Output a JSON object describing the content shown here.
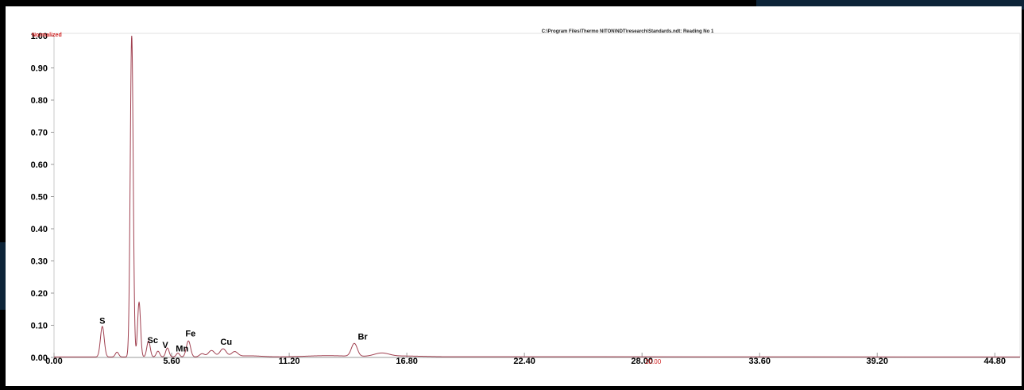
{
  "window": {
    "background": "#000000",
    "accent_strip_color": "#0d2438",
    "panel_background": "#ffffff"
  },
  "chart_data": {
    "type": "line",
    "title": "C:\\Program Files\\Thermo NITON\\NDT\\research\\Standards.ndt: Reading No 1",
    "y_unit_label": "Normalized",
    "cursor_readout": "20.00",
    "xlim": [
      0.0,
      46.0
    ],
    "ylim": [
      0.0,
      1.0
    ],
    "x_ticks": [
      {
        "value": 0.0,
        "label": "0.00"
      },
      {
        "value": 5.6,
        "label": "5.60"
      },
      {
        "value": 11.2,
        "label": "11.20"
      },
      {
        "value": 16.8,
        "label": "16.80"
      },
      {
        "value": 22.4,
        "label": "22.40"
      },
      {
        "value": 28.0,
        "label": "28.00"
      },
      {
        "value": 33.6,
        "label": "33.60"
      },
      {
        "value": 39.2,
        "label": "39.20"
      },
      {
        "value": 44.8,
        "label": "44.80"
      }
    ],
    "y_ticks": [
      {
        "value": 0.0,
        "label": "0.00"
      },
      {
        "value": 0.1,
        "label": "0.10"
      },
      {
        "value": 0.2,
        "label": "0.20"
      },
      {
        "value": 0.3,
        "label": "0.30"
      },
      {
        "value": 0.4,
        "label": "0.40"
      },
      {
        "value": 0.5,
        "label": "0.50"
      },
      {
        "value": 0.6,
        "label": "0.60"
      },
      {
        "value": 0.7,
        "label": "0.70"
      },
      {
        "value": 0.8,
        "label": "0.80"
      },
      {
        "value": 0.9,
        "label": "0.90"
      },
      {
        "value": 1.0,
        "label": "1.00"
      }
    ],
    "line_color": "#a04050",
    "series": [
      {
        "peaks": [
          {
            "center": 2.3,
            "height": 0.095,
            "width": 0.09
          },
          {
            "center": 3.0,
            "height": 0.015,
            "width": 0.08
          },
          {
            "center": 3.7,
            "height": 1.0,
            "width": 0.07
          },
          {
            "center": 4.05,
            "height": 0.17,
            "width": 0.07
          },
          {
            "center": 4.5,
            "height": 0.05,
            "width": 0.08
          },
          {
            "center": 4.95,
            "height": 0.018,
            "width": 0.08
          },
          {
            "center": 5.4,
            "height": 0.028,
            "width": 0.08
          },
          {
            "center": 5.9,
            "height": 0.012,
            "width": 0.08
          },
          {
            "center": 6.4,
            "height": 0.05,
            "width": 0.1
          },
          {
            "center": 7.05,
            "height": 0.01,
            "width": 0.12
          },
          {
            "center": 7.5,
            "height": 0.02,
            "width": 0.15
          },
          {
            "center": 8.05,
            "height": 0.025,
            "width": 0.15
          },
          {
            "center": 8.6,
            "height": 0.015,
            "width": 0.15
          },
          {
            "center": 14.3,
            "height": 0.04,
            "width": 0.14
          },
          {
            "center": 15.6,
            "height": 0.01,
            "width": 0.35
          }
        ],
        "broad_bumps": [
          {
            "center": 9.3,
            "height": 0.0035,
            "width": 0.6
          },
          {
            "center": 13.0,
            "height": 0.004,
            "width": 1.0
          },
          {
            "center": 16.5,
            "height": 0.003,
            "width": 1.2
          }
        ]
      }
    ],
    "peak_labels": [
      {
        "label": "S",
        "x": 2.3,
        "y": 0.105
      },
      {
        "label": "Sc",
        "x": 4.7,
        "y": 0.045
      },
      {
        "label": "V",
        "x": 5.3,
        "y": 0.03
      },
      {
        "label": "Mn",
        "x": 6.1,
        "y": 0.018
      },
      {
        "label": "Fe",
        "x": 6.5,
        "y": 0.065
      },
      {
        "label": "Cu",
        "x": 8.2,
        "y": 0.04
      },
      {
        "label": "Br",
        "x": 14.7,
        "y": 0.055
      }
    ]
  }
}
